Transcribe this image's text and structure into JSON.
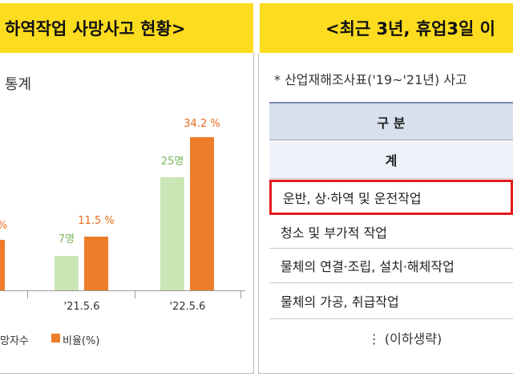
{
  "left_panel": {
    "header": "하역작업 사망사고 현황>",
    "stat_label": "통계"
  },
  "right_panel": {
    "header": "<최근 3년, 휴업3일 이",
    "note": "*  산업재해조사표('19~'21년) 사고",
    "table": {
      "header": "구  분",
      "total_label": "계",
      "rows": [
        {
          "label": "운반, 상·하역 및 운전작업",
          "highlighted": true
        },
        {
          "label": "청소 및 부가적 작업",
          "highlighted": false
        },
        {
          "label": "물체의 연결·조립, 설치·해체작업",
          "highlighted": false
        },
        {
          "label": "물체의 가공, 취급작업",
          "highlighted": false
        }
      ],
      "omitted": "⋮ (이하생략)"
    }
  },
  "chart_data": {
    "type": "bar",
    "categories": [
      "",
      "'21.5.6",
      "'22.5.6"
    ],
    "series": [
      {
        "name": "망자수",
        "color": "#c9e6b4",
        "values": [
          null,
          7,
          25
        ],
        "labels": [
          "",
          "7명",
          "25명"
        ]
      },
      {
        "name": "비율(%)",
        "color": "#ee7d2b",
        "values": [
          null,
          11.5,
          34.2
        ],
        "labels": [
          "%",
          "11.5 %",
          "34.2 %"
        ]
      }
    ],
    "legend_labels": [
      "망자수",
      "비율(%)"
    ]
  }
}
